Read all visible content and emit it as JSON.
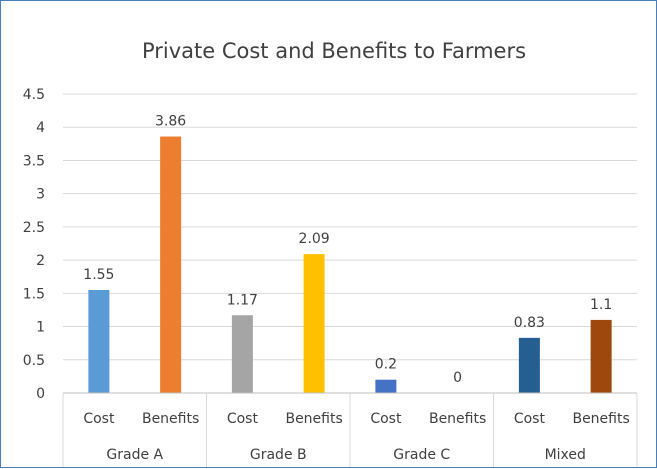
{
  "chart_data": {
    "type": "bar",
    "title": "Private Cost and Benefits to Farmers",
    "xlabel": "",
    "ylabel": "",
    "ylim": [
      0,
      4.5
    ],
    "yticks": [
      "0",
      "0.5",
      "1",
      "1.5",
      "2",
      "2.5",
      "3",
      "3.5",
      "4",
      "4.5"
    ],
    "grid": true,
    "legend": "none",
    "groups": [
      {
        "name": "Grade A",
        "bars": [
          {
            "category": "Cost",
            "value": 1.55,
            "label": "1.55",
            "color": "#5b9bd5"
          },
          {
            "category": "Benefits",
            "value": 3.86,
            "label": "3.86",
            "color": "#ed7d31"
          }
        ]
      },
      {
        "name": "Grade B",
        "bars": [
          {
            "category": "Cost",
            "value": 1.17,
            "label": "1.17",
            "color": "#a5a5a5"
          },
          {
            "category": "Benefits",
            "value": 2.09,
            "label": "2.09",
            "color": "#ffc000"
          }
        ]
      },
      {
        "name": "Grade C",
        "bars": [
          {
            "category": "Cost",
            "value": 0.2,
            "label": "0.2",
            "color": "#4472c4"
          },
          {
            "category": "Benefits",
            "value": 0,
            "label": "0",
            "color": "#70ad47"
          }
        ]
      },
      {
        "name": "Mixed",
        "bars": [
          {
            "category": "Cost",
            "value": 0.83,
            "label": "0.83",
            "color": "#255e91"
          },
          {
            "category": "Benefits",
            "value": 1.1,
            "label": "1.1",
            "color": "#9e480e"
          }
        ]
      }
    ]
  },
  "colors": {
    "gridline": "#d9d9d9",
    "text": "#404040",
    "frame": "#4a7ebb"
  }
}
